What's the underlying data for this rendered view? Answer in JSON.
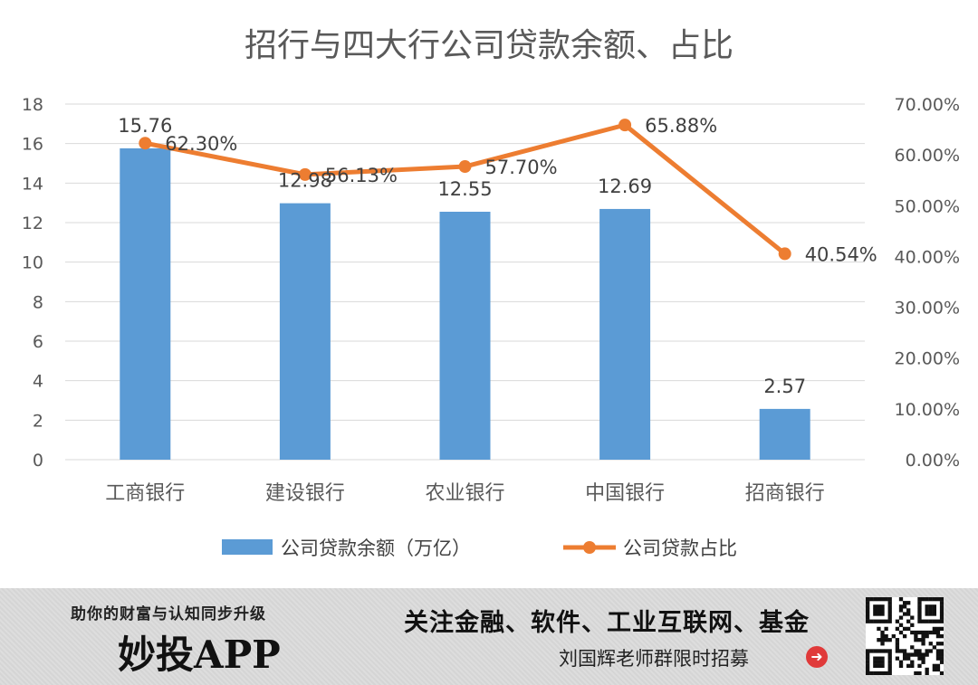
{
  "chart_data": {
    "type": "bar+line",
    "title": "招行与四大行公司贷款余额、占比",
    "categories": [
      "工商银行",
      "建设银行",
      "农业银行",
      "中国银行",
      "招商银行"
    ],
    "series": [
      {
        "name": "公司贷款余额（万亿）",
        "type": "bar",
        "axis": "left",
        "color": "#5B9BD5",
        "values": [
          15.76,
          12.98,
          12.55,
          12.69,
          2.57
        ],
        "labels": [
          "15.76",
          "12.98",
          "12.55",
          "12.69",
          "2.57"
        ]
      },
      {
        "name": "公司贷款占比",
        "type": "line",
        "axis": "right",
        "color": "#ED7D31",
        "values": [
          62.3,
          56.13,
          57.7,
          65.88,
          40.54
        ],
        "labels": [
          "62.30%",
          "56.13%",
          "57.70%",
          "65.88%",
          "40.54%"
        ]
      }
    ],
    "y_left": {
      "min": 0,
      "max": 18,
      "step": 2,
      "ticks": [
        "0",
        "2",
        "4",
        "6",
        "8",
        "10",
        "12",
        "14",
        "16",
        "18"
      ]
    },
    "y_right": {
      "min": 0,
      "max": 70,
      "step": 10,
      "ticks": [
        "0.00%",
        "10.00%",
        "20.00%",
        "30.00%",
        "40.00%",
        "50.00%",
        "60.00%",
        "70.00%"
      ]
    },
    "grid": true,
    "legend_position": "bottom",
    "gridline_color": "#d9d9d9"
  },
  "banner": {
    "slogan": "助你的财富与认知同步升级",
    "app_name": "妙投APP",
    "focus": "关注金融、软件、工业互联网、基金",
    "recruit": "刘国辉老师群限时招募",
    "arrow_icon": "right-arrow-circle-icon",
    "qr_icon": "qr-code-icon"
  }
}
